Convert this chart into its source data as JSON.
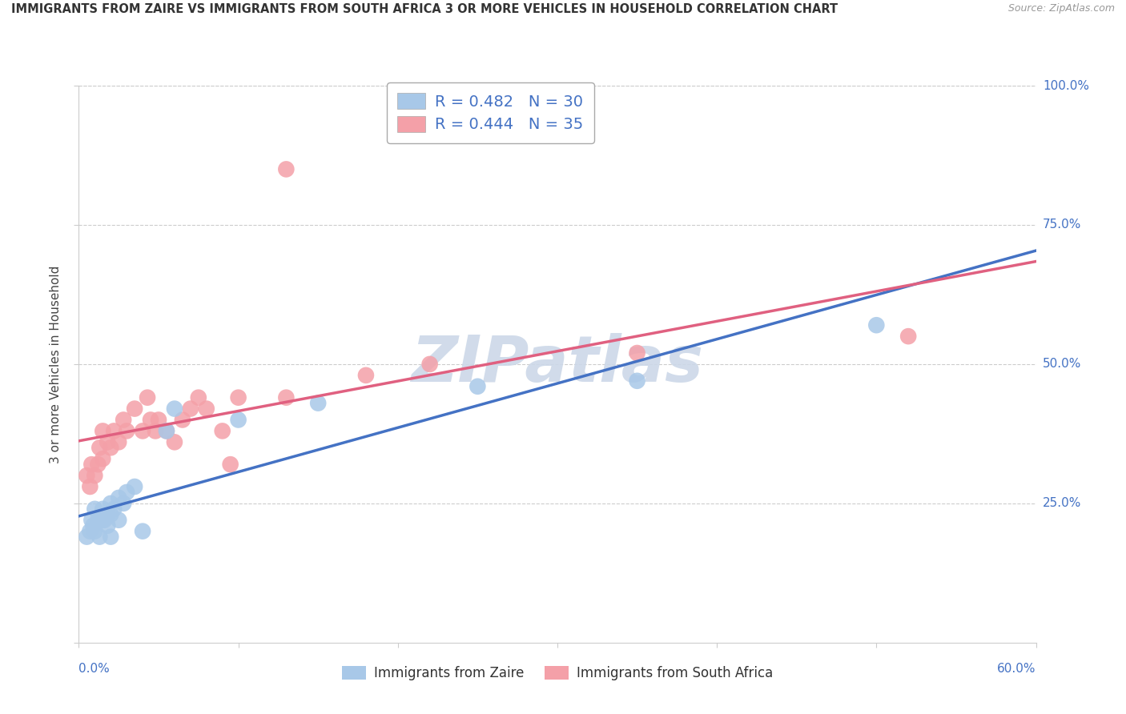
{
  "title": "IMMIGRANTS FROM ZAIRE VS IMMIGRANTS FROM SOUTH AFRICA 3 OR MORE VEHICLES IN HOUSEHOLD CORRELATION CHART",
  "source": "Source: ZipAtlas.com",
  "ylabel": "3 or more Vehicles in Household",
  "legend_zaire": "R = 0.482   N = 30",
  "legend_sa": "R = 0.444   N = 35",
  "legend_label_zaire": "Immigrants from Zaire",
  "legend_label_sa": "Immigrants from South Africa",
  "zaire_color": "#a8c8e8",
  "sa_color": "#f4a0a8",
  "zaire_line_color": "#4472c4",
  "sa_line_color": "#e06080",
  "legend_text_color": "#4472c4",
  "watermark_color": "#ccd8e8",
  "xmin": 0.0,
  "xmax": 0.6,
  "ymin": 0.0,
  "ymax": 1.0,
  "grid_color": "#cccccc",
  "zaire_x": [
    0.005,
    0.007,
    0.008,
    0.009,
    0.01,
    0.01,
    0.012,
    0.013,
    0.015,
    0.015,
    0.016,
    0.018,
    0.018,
    0.02,
    0.02,
    0.02,
    0.022,
    0.025,
    0.025,
    0.028,
    0.03,
    0.035,
    0.04,
    0.055,
    0.06,
    0.1,
    0.15,
    0.25,
    0.35,
    0.5
  ],
  "zaire_y": [
    0.19,
    0.2,
    0.22,
    0.21,
    0.24,
    0.2,
    0.22,
    0.19,
    0.24,
    0.22,
    0.22,
    0.23,
    0.21,
    0.25,
    0.23,
    0.19,
    0.24,
    0.26,
    0.22,
    0.25,
    0.27,
    0.28,
    0.2,
    0.38,
    0.42,
    0.4,
    0.43,
    0.46,
    0.47,
    0.57
  ],
  "sa_x": [
    0.005,
    0.007,
    0.008,
    0.01,
    0.012,
    0.013,
    0.015,
    0.015,
    0.018,
    0.02,
    0.022,
    0.025,
    0.028,
    0.03,
    0.035,
    0.04,
    0.043,
    0.045,
    0.048,
    0.05,
    0.055,
    0.06,
    0.065,
    0.07,
    0.075,
    0.08,
    0.09,
    0.095,
    0.1,
    0.13,
    0.18,
    0.22,
    0.35,
    0.52,
    0.13
  ],
  "sa_y": [
    0.3,
    0.28,
    0.32,
    0.3,
    0.32,
    0.35,
    0.33,
    0.38,
    0.36,
    0.35,
    0.38,
    0.36,
    0.4,
    0.38,
    0.42,
    0.38,
    0.44,
    0.4,
    0.38,
    0.4,
    0.38,
    0.36,
    0.4,
    0.42,
    0.44,
    0.42,
    0.38,
    0.32,
    0.44,
    0.44,
    0.48,
    0.5,
    0.52,
    0.55,
    0.85
  ]
}
